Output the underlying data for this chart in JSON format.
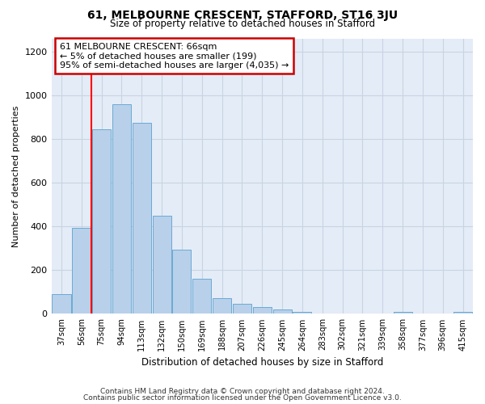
{
  "title": "61, MELBOURNE CRESCENT, STAFFORD, ST16 3JU",
  "subtitle": "Size of property relative to detached houses in Stafford",
  "xlabel": "Distribution of detached houses by size in Stafford",
  "ylabel": "Number of detached properties",
  "footer_line1": "Contains HM Land Registry data © Crown copyright and database right 2024.",
  "footer_line2": "Contains public sector information licensed under the Open Government Licence v3.0.",
  "categories": [
    "37sqm",
    "56sqm",
    "75sqm",
    "94sqm",
    "113sqm",
    "132sqm",
    "150sqm",
    "169sqm",
    "188sqm",
    "207sqm",
    "226sqm",
    "245sqm",
    "264sqm",
    "283sqm",
    "302sqm",
    "321sqm",
    "339sqm",
    "358sqm",
    "377sqm",
    "396sqm",
    "415sqm"
  ],
  "values": [
    90,
    395,
    845,
    960,
    875,
    450,
    295,
    160,
    70,
    45,
    30,
    20,
    10,
    0,
    0,
    0,
    0,
    10,
    0,
    0,
    10
  ],
  "bar_color": "#b8d0ea",
  "bar_edge_color": "#6aaad4",
  "grid_color": "#c8d4e4",
  "background_color": "#e4ecf7",
  "red_line_x": 1.5,
  "annotation_line1": "61 MELBOURNE CRESCENT: 66sqm",
  "annotation_line2": "← 5% of detached houses are smaller (199)",
  "annotation_line3": "95% of semi-detached houses are larger (4,035) →",
  "annotation_box_edgecolor": "#cc0000",
  "ylim": [
    0,
    1260
  ],
  "yticks": [
    0,
    200,
    400,
    600,
    800,
    1000,
    1200
  ]
}
